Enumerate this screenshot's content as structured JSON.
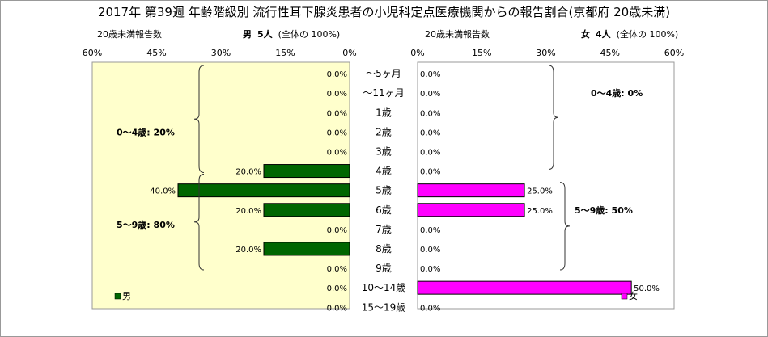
{
  "title": "2017年 第39週 年齢階級別 流行性耳下腺炎患者の小児科定点医療機関からの報告割合(京都府 20歳未満)",
  "left_header": {
    "label": "20歳未満報告数",
    "sex": "男",
    "count": "5人",
    "total": "(全体の 100%)"
  },
  "right_header": {
    "label": "20歳未満報告数",
    "sex": "女",
    "count": "4人",
    "total": "(全体の 100%)"
  },
  "annotations": {
    "male_0_4": "0～4歳: 20%",
    "male_5_9": "5～9歳: 80%",
    "female_0_4": "0～4歳: 0%",
    "female_5_9": "5～9歳: 50%"
  },
  "colors": {
    "male": "#006600",
    "female": "#ff00ff",
    "plot_bg_male": "#ffffcc",
    "plot_bg_female": "#ffffff"
  },
  "chart_data": [
    {
      "type": "bar",
      "orientation": "horizontal",
      "direction": "right-to-left",
      "categories": [
        "～5ヶ月",
        "～11ヶ月",
        "1歳",
        "2歳",
        "3歳",
        "4歳",
        "5歳",
        "6歳",
        "7歳",
        "8歳",
        "9歳",
        "10～14歳",
        "15～19歳"
      ],
      "series": [
        {
          "name": "男",
          "values": [
            0,
            0,
            0,
            0,
            0,
            20,
            40,
            20,
            0,
            20,
            0,
            0,
            0
          ]
        }
      ],
      "value_labels": [
        "0.0%",
        "0.0%",
        "0.0%",
        "0.0%",
        "0.0%",
        "20.0%",
        "40.0%",
        "20.0%",
        "0.0%",
        "20.0%",
        "0.0%",
        "0.0%",
        "0.0%"
      ],
      "xlim": [
        0,
        60
      ],
      "ticks": [
        "60%",
        "45%",
        "30%",
        "15%",
        "0%"
      ],
      "legend": "bottom-left"
    },
    {
      "type": "bar",
      "orientation": "horizontal",
      "direction": "left-to-right",
      "categories": [
        "～5ヶ月",
        "～11ヶ月",
        "1歳",
        "2歳",
        "3歳",
        "4歳",
        "5歳",
        "6歳",
        "7歳",
        "8歳",
        "9歳",
        "10～14歳",
        "15～19歳"
      ],
      "series": [
        {
          "name": "女",
          "values": [
            0,
            0,
            0,
            0,
            0,
            0,
            25,
            25,
            0,
            0,
            0,
            50,
            0
          ]
        }
      ],
      "value_labels": [
        "0.0%",
        "0.0%",
        "0.0%",
        "0.0%",
        "0.0%",
        "0.0%",
        "25.0%",
        "25.0%",
        "0.0%",
        "0.0%",
        "0.0%",
        "50.0%",
        "0.0%"
      ],
      "xlim": [
        0,
        60
      ],
      "ticks": [
        "0%",
        "15%",
        "30%",
        "45%",
        "60%"
      ],
      "legend": "bottom-right"
    }
  ]
}
